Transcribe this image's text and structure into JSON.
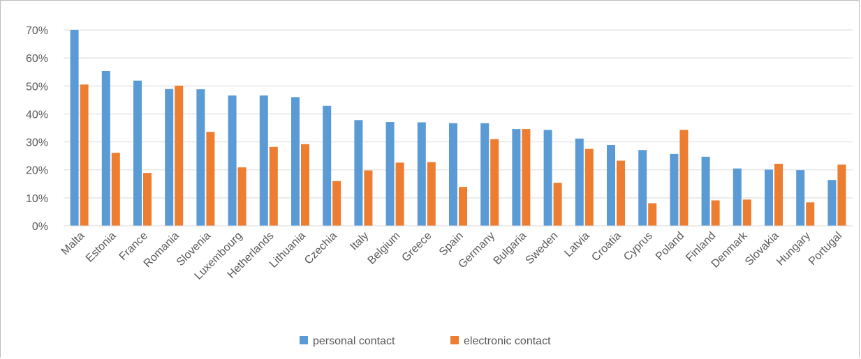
{
  "chart_data": {
    "type": "bar",
    "title": "",
    "xlabel": "",
    "ylabel": "",
    "ylim": [
      0,
      0.7
    ],
    "y_ticks": [
      "0%",
      "10%",
      "20%",
      "30%",
      "40%",
      "50%",
      "60%",
      "70%"
    ],
    "grid": true,
    "legend_position": "bottom",
    "categories": [
      "Malta",
      "Estonia",
      "France",
      "Romania",
      "Slovenia",
      "Luxembourg",
      "Hetherlands",
      "Lithuania",
      "Czechia",
      "Italy",
      "Belgium",
      "Greece",
      "Spain",
      "Germany",
      "Bulgaria",
      "Sweden",
      "Latvia",
      "Croatia",
      "Cyprus",
      "Poland",
      "Finland",
      "Denmark",
      "Slovakia",
      "Hungary",
      "Portugal"
    ],
    "series": [
      {
        "name": "personal contact",
        "color": "#5b9bd5",
        "values": [
          0.7,
          0.553,
          0.519,
          0.489,
          0.488,
          0.466,
          0.466,
          0.46,
          0.429,
          0.378,
          0.371,
          0.37,
          0.367,
          0.367,
          0.346,
          0.343,
          0.312,
          0.289,
          0.271,
          0.257,
          0.247,
          0.205,
          0.201,
          0.199,
          0.164
        ]
      },
      {
        "name": "electronic contact",
        "color": "#ed7d31",
        "values": [
          0.505,
          0.261,
          0.189,
          0.501,
          0.336,
          0.209,
          0.282,
          0.292,
          0.16,
          0.198,
          0.226,
          0.228,
          0.139,
          0.31,
          0.346,
          0.154,
          0.275,
          0.233,
          0.081,
          0.343,
          0.091,
          0.094,
          0.222,
          0.084,
          0.219
        ]
      }
    ]
  }
}
